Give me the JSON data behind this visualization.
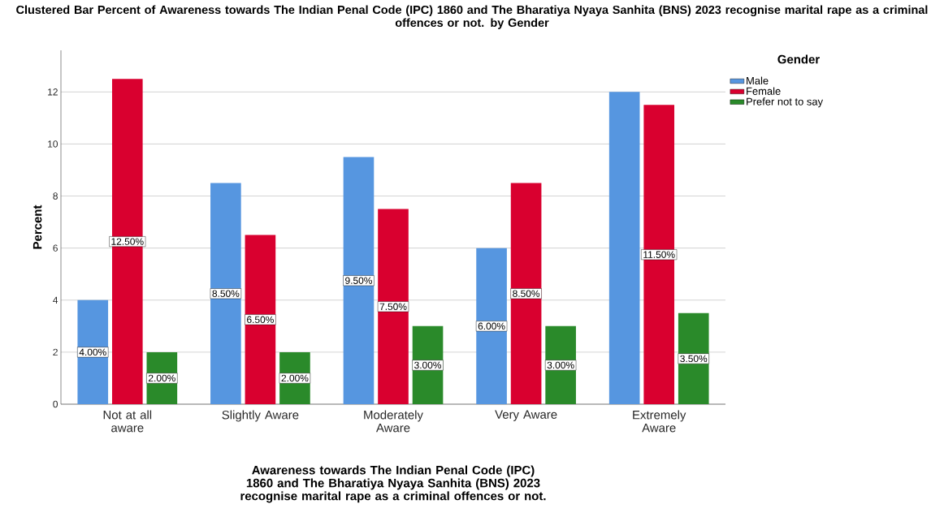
{
  "chart_data": {
    "type": "bar",
    "title": "Clustered Bar Percent of Awareness towards The Indian Penal Code (IPC) 1860 and The Bharatiya Nyaya Sanhita (BNS) 2023 recognise marital rape as a criminal offences or not. by Gender",
    "xlabel": "Awareness towards The Indian Penal Code (IPC) 1860 and The Bharatiya Nyaya Sanhita (BNS) 2023 recognise marital rape as a criminal offences or not.",
    "ylabel": "Percent",
    "legend_title": "Gender",
    "categories": [
      "Not at all aware",
      "Slightly Aware",
      "Moderately Aware",
      "Very Aware",
      "Extremely Aware"
    ],
    "series": [
      {
        "name": "Male",
        "color": "#5696e0",
        "values": [
          4,
          8.5,
          9.5,
          6,
          12
        ],
        "value_labels": [
          "4.00%",
          "8.50%",
          "9.50%",
          "6.00%",
          null
        ]
      },
      {
        "name": "Female",
        "color": "#d9002f",
        "values": [
          12.5,
          6.5,
          7.5,
          8.5,
          11.5
        ],
        "value_labels": [
          "12.50%",
          "6.50%",
          "7.50%",
          "8.50%",
          "11.50%"
        ]
      },
      {
        "name": "Prefer not to say",
        "color": "#2a8a2a",
        "values": [
          2,
          2,
          3,
          3,
          3.5
        ],
        "value_labels": [
          "2.00%",
          "2.00%",
          "3.00%",
          "3.00%",
          "3.50%"
        ]
      }
    ],
    "ylim": [
      0,
      13.6
    ],
    "yticks": [
      0,
      2,
      4,
      6,
      8,
      10,
      12
    ],
    "grid": "y",
    "legend": "top right"
  }
}
